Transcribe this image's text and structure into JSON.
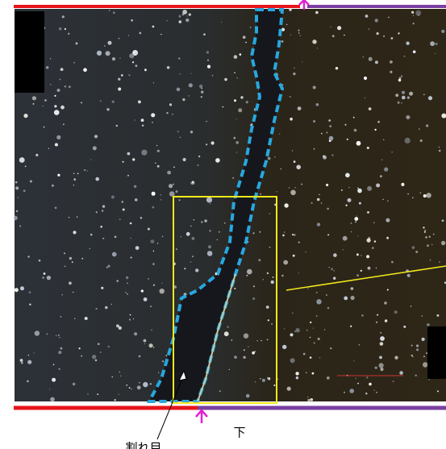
{
  "labels": {
    "bottom": "下",
    "crack": "割れ目"
  }
}
